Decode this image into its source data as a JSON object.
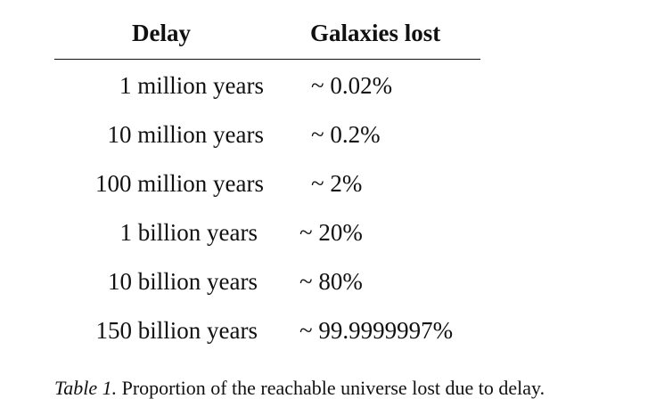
{
  "table": {
    "headers": {
      "delay": "Delay",
      "lost": "Galaxies lost"
    },
    "rows": [
      {
        "delay": "1 million years",
        "lost": "~ 0.02%"
      },
      {
        "delay": "10 million years",
        "lost": "~ 0.2%"
      },
      {
        "delay": "100 million years",
        "lost": "~ 2%"
      },
      {
        "delay": "1 billion years",
        "lost": "~ 20%"
      },
      {
        "delay": "10 billion years",
        "lost": "~ 80%"
      },
      {
        "delay": "150 billion years",
        "lost": "~ 99.9999997%"
      }
    ]
  },
  "caption": {
    "label": "Table 1.",
    "text": "Proportion of the reachable universe lost due to delay."
  }
}
